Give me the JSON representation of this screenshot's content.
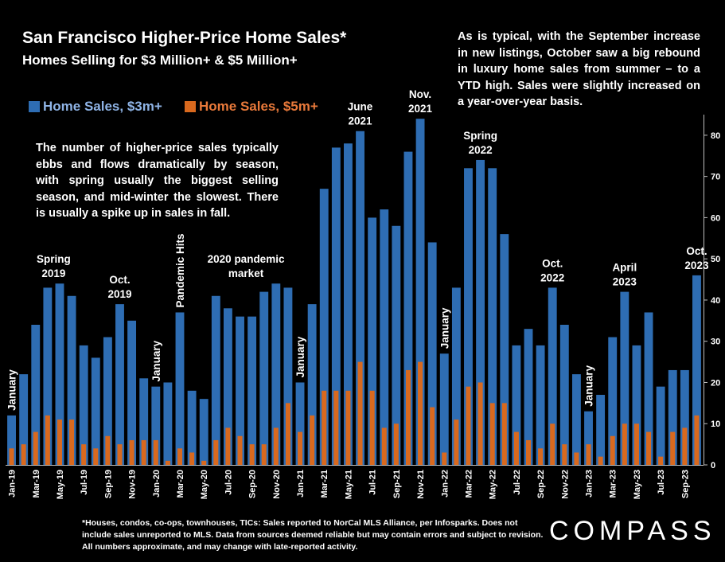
{
  "header": {
    "title": "San Francisco Higher-Price Home Sales*",
    "subtitle": "Homes Selling for $3 Million+ & $5 Million+"
  },
  "notes": {
    "right": "As is typical, with the September increase in new listings, October saw a big rebound in luxury home sales from summer – to a YTD high. Sales were slightly increased on a year-over-year basis.",
    "left": "The number of higher-price sales typically ebbs and flows dramatically by season, with spring usually the biggest selling season, and mid-winter the slowest. There is usually a spike up in sales in fall.",
    "footnote": "*Houses, condos, co-ops, townhouses, TICs: Sales reported to NorCal MLS Alliance, per Infosparks. Does not include sales unreported to MLS. Data from sources deemed reliable but may contain errors and subject to revision. All numbers approximate, and may change with late-reported activity."
  },
  "logo": "COMPASS",
  "colors": {
    "blue": "#2e6db3",
    "orange": "#d9691e",
    "background": "#000000"
  },
  "chart_data": {
    "type": "bar",
    "categories": [
      "Jan-19",
      "Feb-19",
      "Mar-19",
      "Apr-19",
      "May-19",
      "Jun-19",
      "Jul-19",
      "Aug-19",
      "Sep-19",
      "Oct-19",
      "Nov-19",
      "Dec-19",
      "Jan-20",
      "Feb-20",
      "Mar-20",
      "Apr-20",
      "May-20",
      "Jun-20",
      "Jul-20",
      "Aug-20",
      "Sep-20",
      "Oct-20",
      "Nov-20",
      "Dec-20",
      "Jan-21",
      "Feb-21",
      "Mar-21",
      "Apr-21",
      "May-21",
      "Jun-21",
      "Jul-21",
      "Aug-21",
      "Sep-21",
      "Oct-21",
      "Nov-21",
      "Dec-21",
      "Jan-22",
      "Feb-22",
      "Mar-22",
      "Apr-22",
      "May-22",
      "Jun-22",
      "Jul-22",
      "Aug-22",
      "Sep-22",
      "Oct-22",
      "Nov-22",
      "Dec-22",
      "Jan-23",
      "Feb-23",
      "Mar-23",
      "Apr-23",
      "May-23",
      "Jun-23",
      "Jul-23",
      "Aug-23",
      "Sep-23",
      "Oct-23"
    ],
    "tick_labels": [
      "Jan-19",
      "Mar-19",
      "May-19",
      "Jul-19",
      "Sep-19",
      "Nov-19",
      "Jan-20",
      "Mar-20",
      "May-20",
      "Jul-20",
      "Sep-20",
      "Nov-20",
      "Jan-21",
      "Mar-21",
      "May-21",
      "Jul-21",
      "Sep-21",
      "Nov-21",
      "Jan-22",
      "Mar-22",
      "May-22",
      "Jul-22",
      "Sep-22",
      "Nov-22",
      "Jan-23",
      "Mar-23",
      "May-23",
      "Jul-23",
      "Sep-23"
    ],
    "series": [
      {
        "name": "Home Sales, $3m+",
        "color": "#2e6db3",
        "values": [
          12,
          22,
          34,
          43,
          44,
          41,
          29,
          26,
          31,
          39,
          35,
          21,
          19,
          20,
          37,
          18,
          16,
          41,
          38,
          36,
          36,
          42,
          44,
          43,
          20,
          39,
          67,
          77,
          78,
          81,
          60,
          62,
          58,
          76,
          84,
          54,
          27,
          43,
          72,
          74,
          72,
          56,
          29,
          33,
          29,
          43,
          34,
          22,
          13,
          17,
          31,
          42,
          29,
          37,
          19,
          23,
          23,
          46
        ]
      },
      {
        "name": "Home Sales, $5m+",
        "color": "#d9691e",
        "values": [
          4,
          5,
          8,
          12,
          11,
          11,
          5,
          4,
          7,
          5,
          6,
          6,
          6,
          1,
          4,
          3,
          1,
          6,
          9,
          7,
          5,
          5,
          9,
          15,
          8,
          12,
          18,
          18,
          18,
          25,
          18,
          9,
          10,
          23,
          25,
          14,
          3,
          11,
          19,
          20,
          15,
          15,
          8,
          6,
          4,
          10,
          5,
          3,
          5,
          2,
          7,
          10,
          10,
          8,
          2,
          8,
          9,
          12
        ]
      }
    ],
    "ylim": [
      0,
      85
    ],
    "yticks": [
      0,
      10,
      20,
      30,
      40,
      50,
      60,
      70,
      80
    ],
    "legend_position": "top-left",
    "grid": false,
    "annotations": [
      {
        "lines": [
          "January"
        ],
        "vertical": true,
        "index": 0,
        "value": 12
      },
      {
        "lines": [
          "Spring",
          "2019"
        ],
        "index": 3.5,
        "value": 44
      },
      {
        "lines": [
          "Oct.",
          "2019"
        ],
        "index": 9,
        "value": 39
      },
      {
        "lines": [
          "January"
        ],
        "vertical": true,
        "index": 12,
        "value": 19
      },
      {
        "lines": [
          "Pandemic Hits"
        ],
        "vertical": true,
        "index": 14,
        "value": 37
      },
      {
        "lines": [
          "2020 pandemic",
          "market"
        ],
        "index": 19.5,
        "value": 44
      },
      {
        "lines": [
          "January"
        ],
        "vertical": true,
        "index": 24,
        "value": 20
      },
      {
        "lines": [
          "June",
          "2021"
        ],
        "index": 29,
        "value": 81
      },
      {
        "lines": [
          "Nov.",
          "2021"
        ],
        "index": 34,
        "value": 84
      },
      {
        "lines": [
          "January"
        ],
        "vertical": true,
        "index": 36,
        "value": 27
      },
      {
        "lines": [
          "Spring",
          "2022"
        ],
        "index": 39,
        "value": 74
      },
      {
        "lines": [
          "Oct.",
          "2022"
        ],
        "index": 45,
        "value": 43
      },
      {
        "lines": [
          "January"
        ],
        "vertical": true,
        "index": 48,
        "value": 13
      },
      {
        "lines": [
          "April",
          "2023"
        ],
        "index": 51,
        "value": 42
      },
      {
        "lines": [
          "Oct.",
          "2023"
        ],
        "index": 57,
        "value": 46
      }
    ]
  }
}
